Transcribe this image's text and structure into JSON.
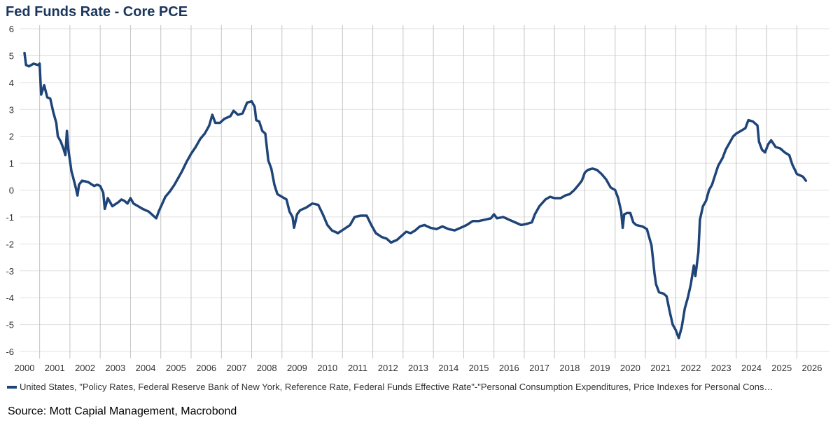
{
  "chart_data": {
    "type": "line",
    "title": "Fed Funds Rate - Core PCE",
    "xlabel": "",
    "ylabel": "",
    "xlim": [
      2000,
      2026
    ],
    "ylim": [
      -6,
      6
    ],
    "x_ticks": [
      "2000",
      "2001",
      "2002",
      "2003",
      "2004",
      "2005",
      "2006",
      "2007",
      "2008",
      "2009",
      "2010",
      "2011",
      "2012",
      "2013",
      "2014",
      "2015",
      "2016",
      "2017",
      "2018",
      "2019",
      "2020",
      "2021",
      "2022",
      "2023",
      "2024",
      "2025",
      "2026"
    ],
    "y_ticks": [
      "6",
      "5",
      "4",
      "3",
      "2",
      "1",
      "0",
      "-1",
      "-2",
      "-3",
      "-4",
      "-5",
      "-6"
    ],
    "grid": true,
    "legend_position": "bottom",
    "series": [
      {
        "name": "United States, \"Policy Rates, Federal Reserve Bank of New York, Reference Rate, Federal Funds Effective Rate\"-\"Personal Consumption Expenditures, Price Indexes for Personal Cons…",
        "color": "#1f4478",
        "points": [
          [
            2000.0,
            5.1
          ],
          [
            2000.05,
            4.65
          ],
          [
            2000.15,
            4.6
          ],
          [
            2000.3,
            4.7
          ],
          [
            2000.45,
            4.65
          ],
          [
            2000.5,
            4.7
          ],
          [
            2000.55,
            3.55
          ],
          [
            2000.65,
            3.9
          ],
          [
            2000.75,
            3.45
          ],
          [
            2000.85,
            3.4
          ],
          [
            2000.95,
            2.9
          ],
          [
            2001.05,
            2.5
          ],
          [
            2001.1,
            2.0
          ],
          [
            2001.2,
            1.8
          ],
          [
            2001.3,
            1.5
          ],
          [
            2001.35,
            1.3
          ],
          [
            2001.4,
            2.2
          ],
          [
            2001.45,
            1.5
          ],
          [
            2001.55,
            0.7
          ],
          [
            2001.6,
            0.5
          ],
          [
            2001.7,
            0.05
          ],
          [
            2001.75,
            -0.2
          ],
          [
            2001.8,
            0.2
          ],
          [
            2001.9,
            0.35
          ],
          [
            2002.1,
            0.3
          ],
          [
            2002.3,
            0.15
          ],
          [
            2002.4,
            0.2
          ],
          [
            2002.5,
            0.15
          ],
          [
            2002.6,
            -0.1
          ],
          [
            2002.65,
            -0.7
          ],
          [
            2002.75,
            -0.3
          ],
          [
            2002.9,
            -0.6
          ],
          [
            2003.1,
            -0.45
          ],
          [
            2003.2,
            -0.35
          ],
          [
            2003.3,
            -0.4
          ],
          [
            2003.4,
            -0.5
          ],
          [
            2003.5,
            -0.3
          ],
          [
            2003.6,
            -0.5
          ],
          [
            2003.75,
            -0.6
          ],
          [
            2003.9,
            -0.7
          ],
          [
            2004.1,
            -0.8
          ],
          [
            2004.25,
            -0.95
          ],
          [
            2004.35,
            -1.05
          ],
          [
            2004.45,
            -0.75
          ],
          [
            2004.55,
            -0.5
          ],
          [
            2004.65,
            -0.25
          ],
          [
            2004.8,
            -0.05
          ],
          [
            2004.95,
            0.2
          ],
          [
            2005.1,
            0.5
          ],
          [
            2005.2,
            0.7
          ],
          [
            2005.35,
            1.05
          ],
          [
            2005.5,
            1.35
          ],
          [
            2005.65,
            1.6
          ],
          [
            2005.8,
            1.9
          ],
          [
            2005.95,
            2.1
          ],
          [
            2006.1,
            2.4
          ],
          [
            2006.2,
            2.8
          ],
          [
            2006.3,
            2.5
          ],
          [
            2006.45,
            2.5
          ],
          [
            2006.6,
            2.65
          ],
          [
            2006.8,
            2.75
          ],
          [
            2006.9,
            2.95
          ],
          [
            2007.05,
            2.8
          ],
          [
            2007.2,
            2.85
          ],
          [
            2007.35,
            3.25
          ],
          [
            2007.5,
            3.3
          ],
          [
            2007.6,
            3.1
          ],
          [
            2007.65,
            2.6
          ],
          [
            2007.75,
            2.55
          ],
          [
            2007.85,
            2.2
          ],
          [
            2007.95,
            2.1
          ],
          [
            2008.05,
            1.1
          ],
          [
            2008.15,
            0.8
          ],
          [
            2008.25,
            0.2
          ],
          [
            2008.35,
            -0.15
          ],
          [
            2008.5,
            -0.25
          ],
          [
            2008.65,
            -0.35
          ],
          [
            2008.75,
            -0.8
          ],
          [
            2008.85,
            -1.0
          ],
          [
            2008.9,
            -1.4
          ],
          [
            2009.0,
            -0.9
          ],
          [
            2009.1,
            -0.75
          ],
          [
            2009.3,
            -0.65
          ],
          [
            2009.5,
            -0.5
          ],
          [
            2009.7,
            -0.55
          ],
          [
            2009.85,
            -0.9
          ],
          [
            2010.0,
            -1.3
          ],
          [
            2010.15,
            -1.5
          ],
          [
            2010.35,
            -1.6
          ],
          [
            2010.55,
            -1.45
          ],
          [
            2010.75,
            -1.3
          ],
          [
            2010.9,
            -1.0
          ],
          [
            2011.1,
            -0.95
          ],
          [
            2011.3,
            -0.95
          ],
          [
            2011.45,
            -1.3
          ],
          [
            2011.6,
            -1.6
          ],
          [
            2011.8,
            -1.75
          ],
          [
            2011.95,
            -1.8
          ],
          [
            2012.1,
            -1.95
          ],
          [
            2012.3,
            -1.85
          ],
          [
            2012.45,
            -1.7
          ],
          [
            2012.6,
            -1.55
          ],
          [
            2012.75,
            -1.6
          ],
          [
            2012.9,
            -1.5
          ],
          [
            2013.05,
            -1.35
          ],
          [
            2013.2,
            -1.3
          ],
          [
            2013.4,
            -1.4
          ],
          [
            2013.6,
            -1.45
          ],
          [
            2013.8,
            -1.35
          ],
          [
            2014.0,
            -1.45
          ],
          [
            2014.2,
            -1.5
          ],
          [
            2014.4,
            -1.4
          ],
          [
            2014.6,
            -1.3
          ],
          [
            2014.8,
            -1.15
          ],
          [
            2015.0,
            -1.15
          ],
          [
            2015.2,
            -1.1
          ],
          [
            2015.4,
            -1.05
          ],
          [
            2015.5,
            -0.9
          ],
          [
            2015.6,
            -1.05
          ],
          [
            2015.8,
            -1.0
          ],
          [
            2016.0,
            -1.1
          ],
          [
            2016.2,
            -1.2
          ],
          [
            2016.4,
            -1.3
          ],
          [
            2016.6,
            -1.25
          ],
          [
            2016.75,
            -1.2
          ],
          [
            2016.85,
            -0.9
          ],
          [
            2017.0,
            -0.6
          ],
          [
            2017.2,
            -0.35
          ],
          [
            2017.35,
            -0.25
          ],
          [
            2017.5,
            -0.3
          ],
          [
            2017.7,
            -0.3
          ],
          [
            2017.85,
            -0.2
          ],
          [
            2018.0,
            -0.15
          ],
          [
            2018.15,
            0.0
          ],
          [
            2018.3,
            0.2
          ],
          [
            2018.4,
            0.35
          ],
          [
            2018.5,
            0.65
          ],
          [
            2018.6,
            0.75
          ],
          [
            2018.75,
            0.8
          ],
          [
            2018.9,
            0.75
          ],
          [
            2019.05,
            0.6
          ],
          [
            2019.2,
            0.4
          ],
          [
            2019.35,
            0.1
          ],
          [
            2019.5,
            0.0
          ],
          [
            2019.6,
            -0.3
          ],
          [
            2019.7,
            -0.8
          ],
          [
            2019.75,
            -1.4
          ],
          [
            2019.8,
            -0.9
          ],
          [
            2019.9,
            -0.85
          ],
          [
            2020.0,
            -0.85
          ],
          [
            2020.1,
            -1.2
          ],
          [
            2020.2,
            -1.3
          ],
          [
            2020.4,
            -1.35
          ],
          [
            2020.55,
            -1.45
          ],
          [
            2020.6,
            -1.65
          ],
          [
            2020.7,
            -2.05
          ],
          [
            2020.75,
            -2.55
          ],
          [
            2020.8,
            -3.1
          ],
          [
            2020.85,
            -3.5
          ],
          [
            2020.95,
            -3.8
          ],
          [
            2021.1,
            -3.85
          ],
          [
            2021.2,
            -3.95
          ],
          [
            2021.3,
            -4.5
          ],
          [
            2021.4,
            -5.0
          ],
          [
            2021.5,
            -5.2
          ],
          [
            2021.6,
            -5.5
          ],
          [
            2021.7,
            -5.1
          ],
          [
            2021.8,
            -4.4
          ],
          [
            2021.9,
            -4.0
          ],
          [
            2022.0,
            -3.5
          ],
          [
            2022.1,
            -2.8
          ],
          [
            2022.15,
            -3.2
          ],
          [
            2022.25,
            -2.3
          ],
          [
            2022.3,
            -1.1
          ],
          [
            2022.4,
            -0.6
          ],
          [
            2022.5,
            -0.4
          ],
          [
            2022.6,
            0.0
          ],
          [
            2022.7,
            0.2
          ],
          [
            2022.8,
            0.55
          ],
          [
            2022.9,
            0.9
          ],
          [
            2023.05,
            1.2
          ],
          [
            2023.15,
            1.5
          ],
          [
            2023.25,
            1.7
          ],
          [
            2023.4,
            2.0
          ],
          [
            2023.5,
            2.1
          ],
          [
            2023.65,
            2.2
          ],
          [
            2023.8,
            2.3
          ],
          [
            2023.9,
            2.6
          ],
          [
            2024.05,
            2.55
          ],
          [
            2024.2,
            2.4
          ],
          [
            2024.25,
            1.8
          ],
          [
            2024.35,
            1.5
          ],
          [
            2024.45,
            1.4
          ],
          [
            2024.55,
            1.7
          ],
          [
            2024.65,
            1.85
          ],
          [
            2024.8,
            1.6
          ],
          [
            2024.95,
            1.55
          ],
          [
            2025.1,
            1.4
          ],
          [
            2025.25,
            1.3
          ],
          [
            2025.35,
            0.95
          ],
          [
            2025.5,
            0.6
          ],
          [
            2025.6,
            0.55
          ],
          [
            2025.7,
            0.5
          ],
          [
            2025.8,
            0.35
          ]
        ]
      }
    ]
  },
  "legend": {
    "label": "United States, \"Policy Rates, Federal Reserve Bank of New York, Reference Rate, Federal Funds Effective Rate\"-\"Personal Consumption Expenditures, Price Indexes for Personal Cons…"
  },
  "source": "Source: Mott Capial Management, Macrobond"
}
